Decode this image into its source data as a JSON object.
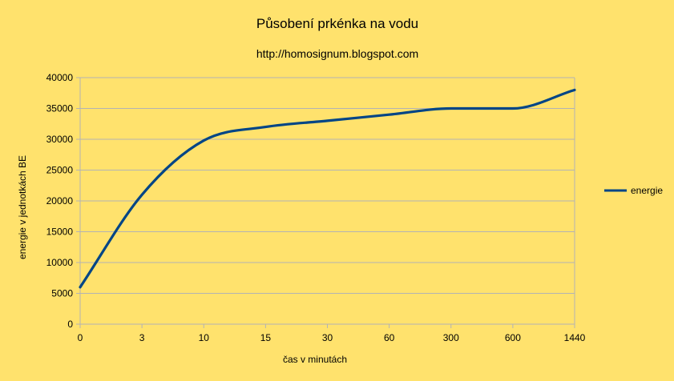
{
  "chart_data": {
    "type": "line",
    "title": "Působení prkénka na vodu",
    "subtitle": "http://homosignum.blogspot.com",
    "xlabel": "čas v minutách",
    "ylabel": "energie v jednotkách BE",
    "categories": [
      "0",
      "3",
      "10",
      "15",
      "30",
      "60",
      "300",
      "600",
      "1440"
    ],
    "ylim": [
      0,
      40000
    ],
    "yticks": [
      0,
      5000,
      10000,
      15000,
      20000,
      25000,
      30000,
      35000,
      40000
    ],
    "grid": true,
    "legend_position": "right",
    "series": [
      {
        "name": "energie",
        "color": "#004586",
        "values": [
          6000,
          21000,
          29800,
          32000,
          33000,
          34000,
          35000,
          35000,
          38000
        ]
      }
    ],
    "colors": {
      "background": "#FFE26D",
      "gridline": "#B3B3B3",
      "series": "#004586"
    }
  }
}
